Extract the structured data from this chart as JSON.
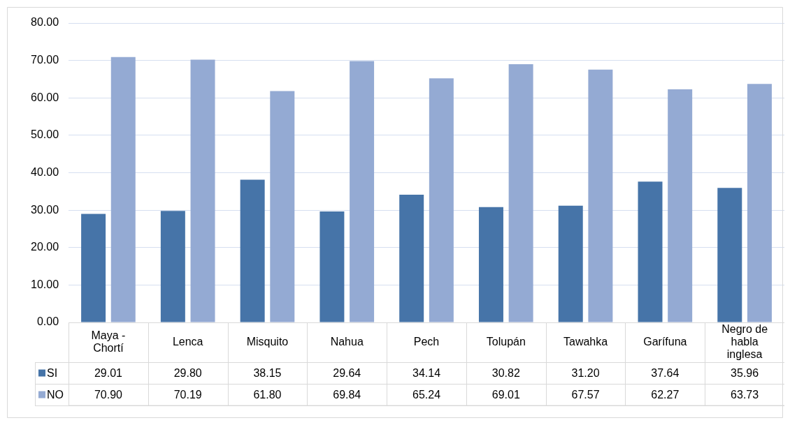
{
  "chart_data": {
    "type": "bar",
    "categories": [
      "Maya - Chortí",
      "Lenca",
      "Misquito",
      "Nahua",
      "Pech",
      "Tolupán",
      "Tawahka",
      "Garífuna",
      "Negro de habla inglesa"
    ],
    "series": [
      {
        "name": "SI",
        "color": "#4674a8",
        "values": [
          29.01,
          29.8,
          38.15,
          29.64,
          34.14,
          30.82,
          31.2,
          37.64,
          35.96
        ],
        "value_labels": [
          "29.01",
          "29.80",
          "38.15",
          "29.64",
          "34.14",
          "30.82",
          "31.20",
          "37.64",
          "35.96"
        ]
      },
      {
        "name": "NO",
        "color": "#94aad3",
        "values": [
          70.9,
          70.19,
          61.8,
          69.84,
          65.24,
          69.01,
          67.57,
          62.27,
          63.73
        ],
        "value_labels": [
          "70.90",
          "70.19",
          "61.80",
          "69.84",
          "65.24",
          "69.01",
          "67.57",
          "62.27",
          "63.73"
        ]
      }
    ],
    "ylim": [
      0,
      80
    ],
    "yticks": [
      {
        "value": 0,
        "label": "0.00"
      },
      {
        "value": 10,
        "label": "10.00"
      },
      {
        "value": 20,
        "label": "20.00"
      },
      {
        "value": 30,
        "label": "30.00"
      },
      {
        "value": 40,
        "label": "40.00"
      },
      {
        "value": 50,
        "label": "50.00"
      },
      {
        "value": 60,
        "label": "60.00"
      },
      {
        "value": 70,
        "label": "70.00"
      },
      {
        "value": 80,
        "label": "80.00"
      }
    ],
    "grid": "y",
    "legend": "bottom left"
  }
}
